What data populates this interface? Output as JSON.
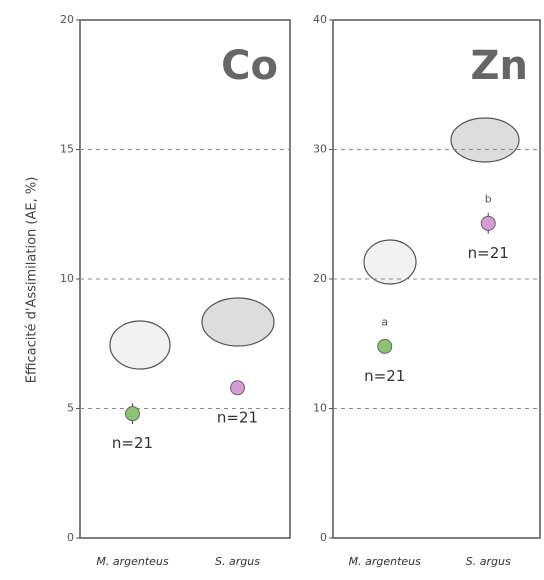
{
  "chart_data": [
    {
      "type": "dot",
      "title": "Co",
      "ylabel": "Efficacité d'Assimilation (AE, %)",
      "categories": [
        "M. argenteus",
        "S. argus"
      ],
      "values": [
        4.8,
        5.8
      ],
      "errors": [
        0.4,
        0.2
      ],
      "colors": [
        "#8cc474",
        "#d79bd6"
      ],
      "point_labels": [
        "n=21",
        "n=21"
      ],
      "ylim": [
        0,
        20
      ],
      "yticks": [
        0,
        5,
        10,
        15,
        20
      ],
      "grid": true
    },
    {
      "type": "dot",
      "title": "Zn",
      "categories": [
        "M. argenteus",
        "S. argus"
      ],
      "values": [
        14.8,
        24.3
      ],
      "errors": [
        0.5,
        0.8
      ],
      "colors": [
        "#8cc474",
        "#d79bd6"
      ],
      "point_labels": [
        "n=21",
        "n=21"
      ],
      "letters": [
        "a",
        "b"
      ],
      "ylim": [
        0,
        40
      ],
      "yticks": [
        0,
        10,
        20,
        30,
        40
      ],
      "grid": true
    }
  ]
}
